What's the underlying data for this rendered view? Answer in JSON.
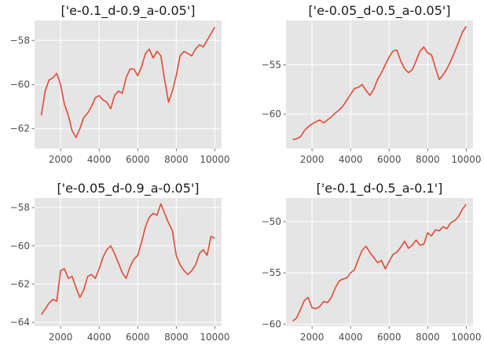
{
  "colors": {
    "panel_bg": "#e5e5e5",
    "grid": "#ffffff",
    "line": "#e24a33",
    "tick_text": "#4d4d4d",
    "title_text": "#1a1a1a"
  },
  "chart_data": [
    {
      "type": "line",
      "title": "['e-0.1_d-0.9_a-0.05']",
      "xlabel": "",
      "ylabel": "",
      "xlim": [
        650,
        10350
      ],
      "ylim": [
        -62.9,
        -57.1
      ],
      "xticks": [
        2000,
        4000,
        6000,
        8000,
        10000
      ],
      "yticks": [
        -62,
        -60,
        -58
      ],
      "grid": true,
      "series": [
        {
          "x": [
            1000,
            1200,
            1400,
            1600,
            1800,
            2000,
            2200,
            2400,
            2600,
            2800,
            3000,
            3200,
            3400,
            3600,
            3800,
            4000,
            4200,
            4400,
            4600,
            4800,
            5000,
            5200,
            5400,
            5600,
            5800,
            6000,
            6200,
            6400,
            6600,
            6800,
            7000,
            7200,
            7400,
            7600,
            7800,
            8000,
            8200,
            8400,
            8600,
            8800,
            9000,
            9200,
            9400,
            9600,
            9800,
            10000
          ],
          "y": [
            -61.4,
            -60.3,
            -59.8,
            -59.7,
            -59.5,
            -60.0,
            -60.9,
            -61.4,
            -62.1,
            -62.4,
            -62.0,
            -61.5,
            -61.3,
            -61.0,
            -60.6,
            -60.5,
            -60.7,
            -60.8,
            -61.1,
            -60.5,
            -60.3,
            -60.4,
            -59.7,
            -59.3,
            -59.3,
            -59.6,
            -59.2,
            -58.6,
            -58.4,
            -58.8,
            -58.5,
            -58.7,
            -59.8,
            -60.8,
            -60.3,
            -59.6,
            -58.7,
            -58.5,
            -58.6,
            -58.7,
            -58.4,
            -58.2,
            -58.3,
            -58.0,
            -57.7,
            -57.4
          ]
        }
      ]
    },
    {
      "type": "line",
      "title": "['e-0.05_d-0.5_a-0.05']",
      "xlabel": "",
      "ylabel": "",
      "xlim": [
        650,
        10350
      ],
      "ylim": [
        -63.5,
        -50.5
      ],
      "xticks": [
        2000,
        4000,
        6000,
        8000,
        10000
      ],
      "yticks": [
        -60,
        -55
      ],
      "grid": true,
      "series": [
        {
          "x": [
            1000,
            1200,
            1400,
            1600,
            1800,
            2000,
            2200,
            2400,
            2600,
            2800,
            3000,
            3200,
            3400,
            3600,
            3800,
            4000,
            4200,
            4400,
            4600,
            4800,
            5000,
            5200,
            5400,
            5600,
            5800,
            6000,
            6200,
            6400,
            6600,
            6800,
            7000,
            7200,
            7400,
            7600,
            7800,
            8000,
            8200,
            8400,
            8600,
            8800,
            9000,
            9200,
            9400,
            9600,
            9800,
            10000
          ],
          "y": [
            -62.6,
            -62.5,
            -62.3,
            -61.7,
            -61.3,
            -61.0,
            -60.8,
            -60.6,
            -60.9,
            -60.6,
            -60.3,
            -59.9,
            -59.6,
            -59.2,
            -58.6,
            -58.0,
            -57.4,
            -57.3,
            -57.0,
            -57.6,
            -58.1,
            -57.5,
            -56.5,
            -55.8,
            -55.0,
            -54.2,
            -53.6,
            -53.5,
            -54.6,
            -55.4,
            -55.8,
            -55.5,
            -54.6,
            -53.6,
            -53.2,
            -53.8,
            -54.0,
            -55.3,
            -56.5,
            -56.0,
            -55.4,
            -54.6,
            -53.7,
            -52.7,
            -51.7,
            -51.1
          ]
        }
      ]
    },
    {
      "type": "line",
      "title": "['e-0.05_d-0.9_a-0.05']",
      "xlabel": "",
      "ylabel": "",
      "xlim": [
        650,
        10350
      ],
      "ylim": [
        -64.2,
        -57.5
      ],
      "xticks": [
        2000,
        4000,
        6000,
        8000,
        10000
      ],
      "yticks": [
        -64,
        -62,
        -60,
        -58
      ],
      "grid": true,
      "series": [
        {
          "x": [
            1000,
            1200,
            1400,
            1600,
            1800,
            2000,
            2200,
            2400,
            2600,
            2800,
            3000,
            3200,
            3400,
            3600,
            3800,
            4000,
            4200,
            4400,
            4600,
            4800,
            5000,
            5200,
            5400,
            5600,
            5800,
            6000,
            6200,
            6400,
            6600,
            6800,
            7000,
            7200,
            7400,
            7600,
            7800,
            8000,
            8200,
            8400,
            8600,
            8800,
            9000,
            9200,
            9400,
            9600,
            9800,
            10000
          ],
          "y": [
            -63.6,
            -63.3,
            -63.0,
            -62.8,
            -62.9,
            -61.3,
            -61.2,
            -61.7,
            -61.6,
            -62.2,
            -62.7,
            -62.3,
            -61.6,
            -61.5,
            -61.7,
            -61.2,
            -60.6,
            -60.2,
            -60.0,
            -60.4,
            -60.9,
            -61.4,
            -61.7,
            -61.1,
            -60.7,
            -60.5,
            -59.8,
            -59.0,
            -58.5,
            -58.3,
            -58.4,
            -57.8,
            -58.3,
            -58.8,
            -59.2,
            -60.5,
            -61.0,
            -61.3,
            -61.5,
            -61.3,
            -61.0,
            -60.4,
            -60.2,
            -60.5,
            -59.5,
            -59.6
          ]
        }
      ]
    },
    {
      "type": "line",
      "title": "['e-0.1_d-0.5_a-0.1']",
      "xlabel": "",
      "ylabel": "",
      "xlim": [
        650,
        10350
      ],
      "ylim": [
        -60.2,
        -47.7
      ],
      "xticks": [
        2000,
        4000,
        6000,
        8000,
        10000
      ],
      "yticks": [
        -60,
        -55,
        -50
      ],
      "grid": true,
      "series": [
        {
          "x": [
            1000,
            1200,
            1400,
            1600,
            1800,
            2000,
            2200,
            2400,
            2600,
            2800,
            3000,
            3200,
            3400,
            3600,
            3800,
            4000,
            4200,
            4400,
            4600,
            4800,
            5000,
            5200,
            5400,
            5600,
            5800,
            6000,
            6200,
            6400,
            6600,
            6800,
            7000,
            7200,
            7400,
            7600,
            7800,
            8000,
            8200,
            8400,
            8600,
            8800,
            9000,
            9200,
            9400,
            9600,
            9800,
            10000
          ],
          "y": [
            -59.7,
            -59.4,
            -58.6,
            -57.7,
            -57.4,
            -58.4,
            -58.5,
            -58.3,
            -57.8,
            -57.9,
            -57.4,
            -56.5,
            -55.8,
            -55.6,
            -55.5,
            -55.0,
            -54.7,
            -53.7,
            -52.8,
            -52.4,
            -53.0,
            -53.5,
            -54.0,
            -53.8,
            -54.6,
            -53.9,
            -53.2,
            -53.0,
            -52.5,
            -51.9,
            -52.6,
            -52.3,
            -51.8,
            -52.3,
            -52.2,
            -51.1,
            -51.4,
            -50.8,
            -50.9,
            -50.5,
            -50.7,
            -50.1,
            -49.9,
            -49.5,
            -48.8,
            -48.3
          ]
        }
      ]
    }
  ]
}
